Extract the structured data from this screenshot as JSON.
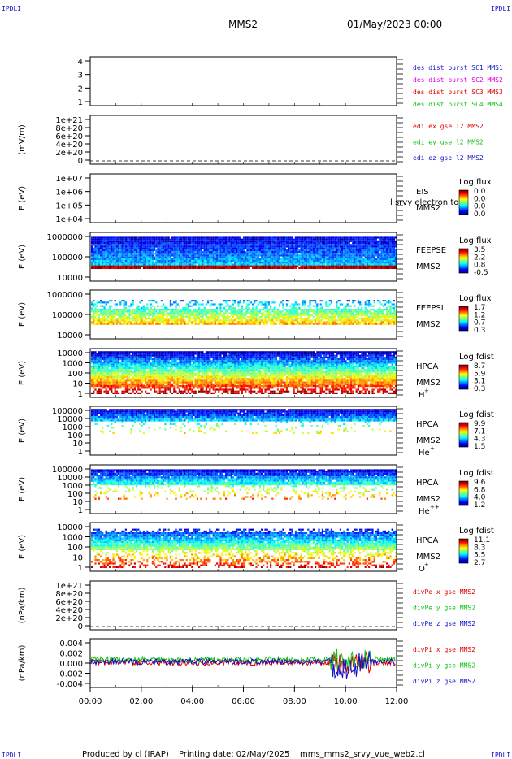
{
  "header": {
    "corner_tl": "IPDLI",
    "corner_tr": "IPDLI",
    "corner_bl": "IPDLI",
    "corner_br": "IPDLI",
    "spacecraft": "MMS2",
    "datetime": "01/May/2023 00:00"
  },
  "footer": {
    "produced": "Produced by cl (IRAP)",
    "printing": "Printing date: 02/May/2025",
    "script": "mms_mms2_srvy_vue_web2.cl"
  },
  "colors": {
    "black": "#000000",
    "blue": "#1010c8",
    "magenta": "#e000e0",
    "red": "#e00000",
    "green": "#10c010"
  },
  "chart_data": [
    {
      "id": "p1",
      "type": "line",
      "y_ticks": [
        "4",
        "3",
        "2",
        "1"
      ],
      "ylim": [
        0.5,
        4.5
      ],
      "legend": [
        {
          "text": "des dist burst SC1 MMS1",
          "color": "#1010c8"
        },
        {
          "text": "des dist burst SC2 MMS2",
          "color": "#e000e0"
        },
        {
          "text": "des dist burst SC3 MMS3",
          "color": "#e00000"
        },
        {
          "text": "des dist burst SC4 MMS4",
          "color": "#10c010"
        }
      ],
      "series": []
    },
    {
      "id": "p2",
      "type": "line",
      "ylabel": "(mV/m)",
      "y_ticks": [
        "1e+21",
        "8e+20",
        "6e+20",
        "4e+20",
        "2e+20",
        "0"
      ],
      "ylim": [
        0,
        1e+21
      ],
      "legend": [
        {
          "text": "edi ex gse l2 MMS2",
          "color": "#e00000"
        },
        {
          "text": "edi ey gse l2 MMS2",
          "color": "#10c010"
        },
        {
          "text": "edi ez gse l2 MMS2",
          "color": "#1010c8"
        }
      ],
      "series": []
    },
    {
      "id": "p3",
      "type": "heatmap",
      "scale": "log",
      "ylabel": "E (eV)",
      "y_ticks": [
        "1e+07",
        "1e+06",
        "1e+05",
        "1e+04"
      ],
      "ylim": [
        10000,
        10000000
      ],
      "instrument": "EIS",
      "sc": "MMS2",
      "overlay_text": "l srvy electron to",
      "colorbar": {
        "title": "Log flux",
        "ticks": [
          "0.0",
          "0.0",
          "0.0",
          "0.0"
        ]
      }
    },
    {
      "id": "p4",
      "type": "heatmap",
      "scale": "log",
      "ylabel": "E (eV)",
      "y_ticks": [
        "1000000",
        "100000",
        "10000"
      ],
      "ylim": [
        10000,
        1000000
      ],
      "instrument": "FEEPSE",
      "sc": "MMS2",
      "colorbar": {
        "title": "Log flux",
        "ticks": [
          "3.5",
          "2.2",
          "0.8",
          "-0.5"
        ]
      }
    },
    {
      "id": "p5",
      "type": "heatmap",
      "scale": "log",
      "ylabel": "E (eV)",
      "y_ticks": [
        "1000000",
        "100000",
        "10000"
      ],
      "ylim": [
        10000,
        1000000
      ],
      "instrument": "FEEPSI",
      "sc": "MMS2",
      "colorbar": {
        "title": "Log flux",
        "ticks": [
          "1.7",
          "1.2",
          "0.7",
          "0.3"
        ]
      }
    },
    {
      "id": "p6",
      "type": "heatmap",
      "scale": "log",
      "ylabel": "E (eV)",
      "y_ticks": [
        "10000",
        "1000",
        "100",
        "10",
        "1"
      ],
      "ylim": [
        1,
        40000
      ],
      "instrument": "HPCA",
      "sc": "MMS2",
      "species": "H",
      "charge": "+",
      "colorbar": {
        "title": "Log fdist",
        "ticks": [
          "8.7",
          "5.9",
          "3.1",
          "0.3"
        ]
      }
    },
    {
      "id": "p7",
      "type": "heatmap",
      "scale": "log",
      "ylabel": "E (eV)",
      "y_ticks": [
        "100000",
        "10000",
        "1000",
        "100",
        "10",
        "1"
      ],
      "ylim": [
        1,
        100000
      ],
      "instrument": "HPCA",
      "sc": "MMS2",
      "species": "He",
      "charge": "+",
      "colorbar": {
        "title": "Log fdist",
        "ticks": [
          "9.9",
          "7.1",
          "4.3",
          "1.5"
        ]
      }
    },
    {
      "id": "p8",
      "type": "heatmap",
      "scale": "log",
      "ylabel": "E (eV)",
      "y_ticks": [
        "100000",
        "10000",
        "1000",
        "100",
        "10",
        "1"
      ],
      "ylim": [
        1,
        100000
      ],
      "instrument": "HPCA",
      "sc": "MMS2",
      "species": "He",
      "charge": "++",
      "colorbar": {
        "title": "Log fdist",
        "ticks": [
          "9.6",
          "6.8",
          "4.0",
          "1.2"
        ]
      }
    },
    {
      "id": "p9",
      "type": "heatmap",
      "scale": "log",
      "ylabel": "E (eV)",
      "y_ticks": [
        "10000",
        "1000",
        "100",
        "10",
        "1"
      ],
      "ylim": [
        1,
        40000
      ],
      "instrument": "HPCA",
      "sc": "MMS2",
      "species": "O",
      "charge": "+",
      "colorbar": {
        "title": "Log fdist",
        "ticks": [
          "11.1",
          "8.3",
          "5.5",
          "2.7"
        ]
      }
    },
    {
      "id": "p10",
      "type": "line",
      "ylabel": "(nPa/km)",
      "y_ticks": [
        "1e+21",
        "8e+20",
        "6e+20",
        "4e+20",
        "2e+20",
        "0"
      ],
      "ylim": [
        0,
        1e+21
      ],
      "legend": [
        {
          "text": "divPe x gse MMS2",
          "color": "#e00000"
        },
        {
          "text": "divPe y gse MMS2",
          "color": "#10c010"
        },
        {
          "text": "divPe z gse MMS2",
          "color": "#1010c8"
        }
      ],
      "series": []
    },
    {
      "id": "p11",
      "type": "line",
      "ylabel": "(nPa/km)",
      "y_ticks": [
        "0.004",
        "0.002",
        "0.000",
        "-0.002",
        "-0.004"
      ],
      "ylim": [
        -0.0055,
        0.0045
      ],
      "legend": [
        {
          "text": "divPi x gse MMS2",
          "color": "#e00000"
        },
        {
          "text": "divPi y gse MMS2",
          "color": "#10c010"
        },
        {
          "text": "divPi z gse MMS2",
          "color": "#1010c8"
        }
      ],
      "x_ticks": [
        "00:00",
        "02:00",
        "04:00",
        "06:00",
        "08:00",
        "10:00",
        "12:00"
      ],
      "xlim_hours": [
        0,
        12
      ]
    }
  ]
}
